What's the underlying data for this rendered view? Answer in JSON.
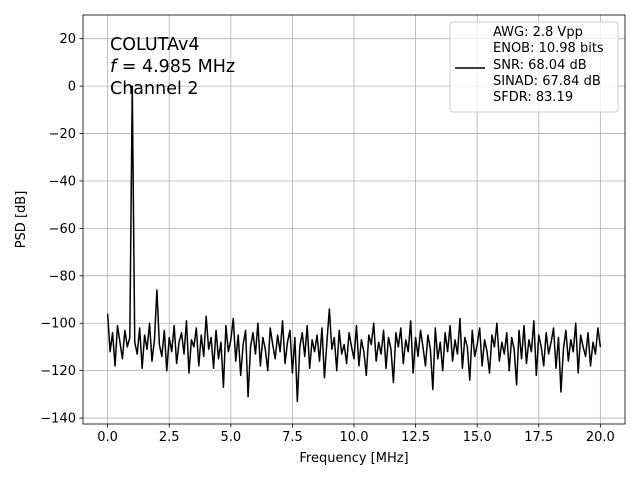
{
  "chart_data": {
    "type": "line",
    "annotation": {
      "line1": "COLUTAv4",
      "freq_symbol": "f",
      "freq": " = 4.985 MHz",
      "line3": "Channel 2"
    },
    "xlabel": "Frequency [MHz]",
    "ylabel": "PSD [dB]",
    "xlim": [
      -1,
      21
    ],
    "ylim": [
      -142.5,
      30
    ],
    "xticks": [
      {
        "value": 0,
        "label": "0.0"
      },
      {
        "value": 2.5,
        "label": "2.5"
      },
      {
        "value": 5,
        "label": "5.0"
      },
      {
        "value": 7.5,
        "label": "7.5"
      },
      {
        "value": 10,
        "label": "10.0"
      },
      {
        "value": 12.5,
        "label": "12.5"
      },
      {
        "value": 15,
        "label": "15.0"
      },
      {
        "value": 17.5,
        "label": "17.5"
      },
      {
        "value": 20,
        "label": "20.0"
      }
    ],
    "yticks": [
      20,
      0,
      {
        "value": -20,
        "label": "−20"
      },
      {
        "value": -40,
        "label": "−40"
      },
      {
        "value": -60,
        "label": "−60"
      },
      {
        "value": -80,
        "label": "−80"
      },
      {
        "value": -100,
        "label": "−100"
      },
      {
        "value": -120,
        "label": "−120"
      },
      {
        "value": -140,
        "label": "−140"
      }
    ],
    "grid": true,
    "legend": "upper right",
    "x": [
      0,
      0.1,
      0.2,
      0.3,
      0.4,
      0.5,
      0.6,
      0.7,
      0.8,
      0.9,
      1,
      1.1,
      1.2,
      1.3,
      1.4,
      1.5,
      1.6,
      1.7,
      1.8,
      1.9,
      2,
      2.1,
      2.2,
      2.3,
      2.4,
      2.5,
      2.6,
      2.7,
      2.8,
      2.9,
      3,
      3.1,
      3.2,
      3.3,
      3.4,
      3.5,
      3.6,
      3.7,
      3.8,
      3.9,
      4,
      4.1,
      4.2,
      4.3,
      4.4,
      4.5,
      4.6,
      4.7,
      4.8,
      4.9,
      5,
      5.1,
      5.2,
      5.3,
      5.4,
      5.5,
      5.6,
      5.7,
      5.8,
      5.9,
      6,
      6.1,
      6.2,
      6.3,
      6.4,
      6.5,
      6.6,
      6.7,
      6.8,
      6.9,
      7,
      7.1,
      7.2,
      7.3,
      7.4,
      7.5,
      7.6,
      7.7,
      7.8,
      7.9,
      8,
      8.1,
      8.2,
      8.3,
      8.4,
      8.5,
      8.6,
      8.7,
      8.8,
      8.9,
      9,
      9.1,
      9.2,
      9.3,
      9.4,
      9.5,
      9.6,
      9.7,
      9.8,
      9.9,
      10,
      10.1,
      10.2,
      10.3,
      10.4,
      10.5,
      10.6,
      10.7,
      10.8,
      10.9,
      11,
      11.1,
      11.2,
      11.3,
      11.4,
      11.5,
      11.6,
      11.7,
      11.8,
      11.9,
      12,
      12.1,
      12.2,
      12.3,
      12.4,
      12.5,
      12.6,
      12.7,
      12.8,
      12.9,
      13,
      13.1,
      13.2,
      13.3,
      13.4,
      13.5,
      13.6,
      13.7,
      13.8,
      13.9,
      14,
      14.1,
      14.2,
      14.3,
      14.4,
      14.5,
      14.6,
      14.7,
      14.8,
      14.9,
      15,
      15.1,
      15.2,
      15.3,
      15.4,
      15.5,
      15.6,
      15.7,
      15.8,
      15.9,
      16,
      16.1,
      16.2,
      16.3,
      16.4,
      16.5,
      16.6,
      16.7,
      16.8,
      16.9,
      17,
      17.1,
      17.2,
      17.3,
      17.4,
      17.5,
      17.6,
      17.7,
      17.8,
      17.9,
      18,
      18.1,
      18.2,
      18.3,
      18.4,
      18.5,
      18.6,
      18.7,
      18.8,
      18.9,
      19,
      19.1,
      19.2,
      19.3,
      19.4,
      19.5,
      19.6,
      19.7,
      19.8,
      19.9,
      20
    ],
    "series": [
      {
        "name": "AWG: 2.8 Vpp\nENOB: 10.98 bits\nSNR: 68.04 dB\nSINAD: 67.84 dB\nSFDR: 83.19",
        "color": "#000000",
        "values": [
          -96,
          -112,
          -104,
          -118,
          -101,
          -108,
          -115,
          -103,
          -110,
          -106,
          0,
          -108,
          -113,
          -102,
          -119,
          -105,
          -111,
          -100,
          -116,
          -107,
          -86,
          -109,
          -114,
          -103,
          -120,
          -106,
          -112,
          -101,
          -117,
          -108,
          -104,
          -113,
          -99,
          -121,
          -107,
          -110,
          -102,
          -118,
          -105,
          -114,
          -97,
          -111,
          -106,
          -119,
          -103,
          -115,
          -108,
          -127,
          -101,
          -112,
          -107,
          -98,
          -116,
          -105,
          -122,
          -109,
          -103,
          -131,
          -110,
          -104,
          -113,
          -100,
          -118,
          -106,
          -111,
          -120,
          -102,
          -109,
          -115,
          -105,
          -112,
          -99,
          -117,
          -108,
          -103,
          -121,
          -106,
          -133,
          -110,
          -104,
          -114,
          -101,
          -119,
          -107,
          -112,
          -105,
          -116,
          -102,
          -123,
          -108,
          -94,
          -111,
          -106,
          -120,
          -103,
          -113,
          -109,
          -117,
          -104,
          -110,
          -115,
          -101,
          -118,
          -107,
          -112,
          -122,
          -105,
          -109,
          -100,
          -116,
          -108,
          -113,
          -103,
          -119,
          -106,
          -111,
          -125,
          -104,
          -110,
          -102,
          -117,
          -107,
          -112,
          -99,
          -121,
          -106,
          -114,
          -103,
          -110,
          -118,
          -105,
          -111,
          -128,
          -102,
          -115,
          -108,
          -120,
          -104,
          -112,
          -101,
          -116,
          -107,
          -113,
          -98,
          -119,
          -106,
          -110,
          -124,
          -103,
          -114,
          -109,
          -102,
          -118,
          -107,
          -112,
          -121,
          -105,
          -110,
          -100,
          -116,
          -108,
          -113,
          -104,
          -120,
          -106,
          -111,
          -126,
          -103,
          -115,
          -101,
          -117,
          -107,
          -112,
          -99,
          -122,
          -105,
          -110,
          -118,
          -104,
          -113,
          -108,
          -102,
          -119,
          -106,
          -129,
          -111,
          -103,
          -116,
          -107,
          -112,
          -100,
          -121,
          -105,
          -110,
          -114,
          -104,
          -118,
          -108,
          -113,
          -102,
          -110
        ]
      }
    ]
  }
}
